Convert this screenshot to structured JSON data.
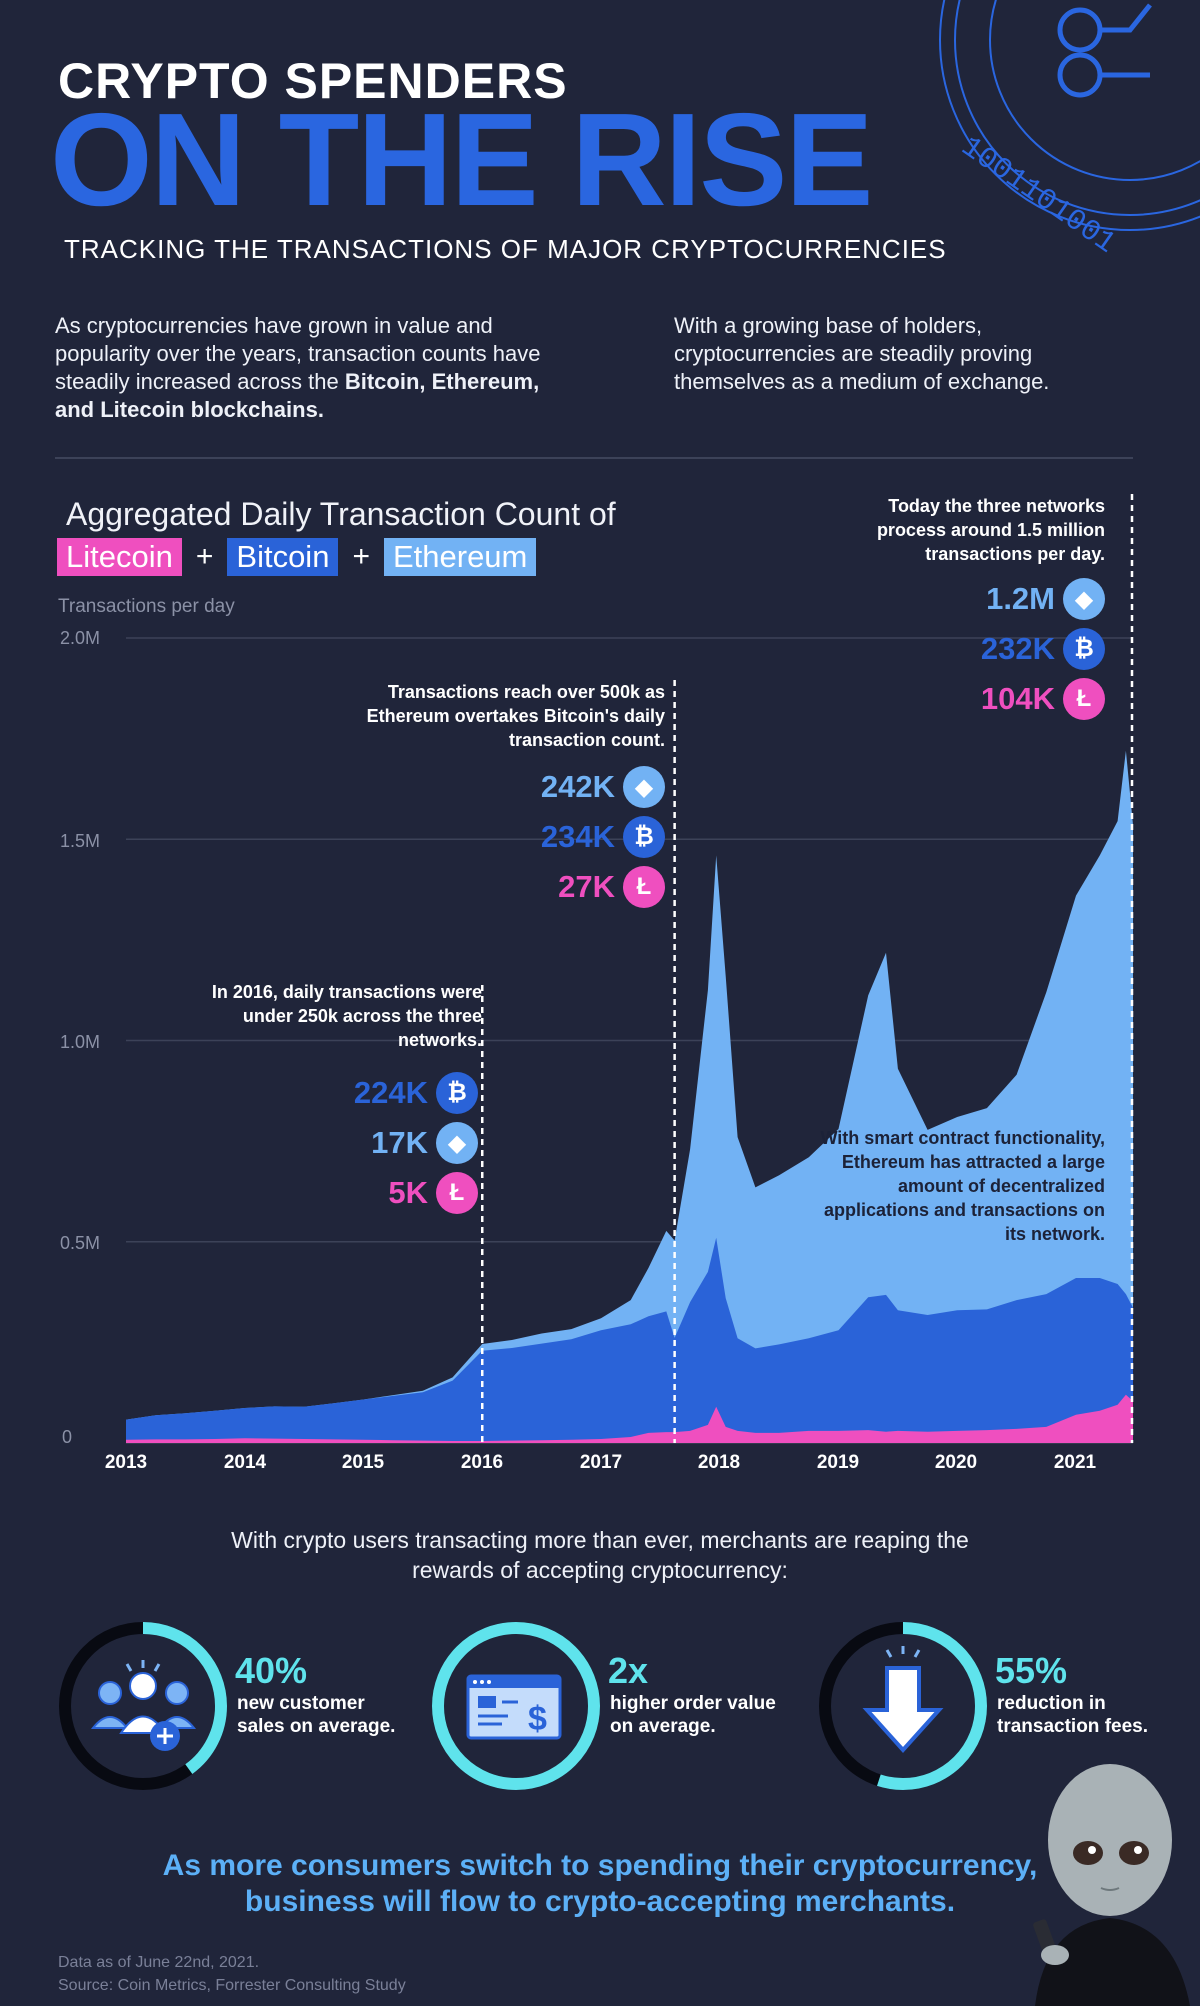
{
  "header": {
    "title_small": "CRYPTO SPENDERS",
    "title_big": "ON THE RISE",
    "subtitle": "TRACKING THE TRANSACTIONS OF MAJOR CRYPTOCURRENCIES",
    "coin_bits": "1001101001"
  },
  "intro": {
    "left_text": "As cryptocurrencies have grown in value and popularity over the years, transaction counts have steadily increased across the ",
    "left_bold": "Bitcoin, Ethereum, and Litecoin blockchains.",
    "right_text": "With a growing base of holders, cryptocurrencies are steadily proving themselves as a medium of exchange."
  },
  "colors": {
    "background": "#20253a",
    "title_blue": "#2a66e0",
    "litecoin": "#ef4fbf",
    "bitcoin": "#2a63d8",
    "ethereum": "#72b2f4",
    "accent_cyan": "#5fe3ec",
    "closing_text": "#5cb0f7"
  },
  "chart_data": {
    "type": "area",
    "stacked": true,
    "title": "Aggregated Daily Transaction Count of",
    "legend": [
      "Litecoin",
      "Bitcoin",
      "Ethereum"
    ],
    "legend_separator": "+",
    "ylabel": "Transactions per day",
    "y_tick_labels": [
      "2.0M",
      "1.5M",
      "1.0M",
      "0.5M",
      "0"
    ],
    "y_ticks": [
      2000000,
      1500000,
      1000000,
      500000,
      0
    ],
    "ylim": [
      0,
      2000000
    ],
    "x_tick_labels": [
      "2013",
      "2014",
      "2015",
      "2016",
      "2017",
      "2018",
      "2019",
      "2020",
      "2021"
    ],
    "xlim": [
      2013.0,
      2021.48
    ],
    "grid": true,
    "x": [
      2013.0,
      2013.25,
      2013.5,
      2013.75,
      2014.0,
      2014.25,
      2014.5,
      2014.75,
      2015.0,
      2015.25,
      2015.5,
      2015.75,
      2016.0,
      2016.25,
      2016.5,
      2016.75,
      2017.0,
      2017.25,
      2017.4,
      2017.55,
      2017.62,
      2017.75,
      2017.9,
      2017.97,
      2018.05,
      2018.15,
      2018.3,
      2018.5,
      2018.75,
      2019.0,
      2019.25,
      2019.4,
      2019.5,
      2019.75,
      2020.0,
      2020.25,
      2020.5,
      2020.75,
      2021.0,
      2021.2,
      2021.35,
      2021.42,
      2021.48
    ],
    "series": [
      {
        "name": "Litecoin",
        "values": [
          8000,
          9000,
          9000,
          10000,
          12000,
          11000,
          10000,
          9000,
          8000,
          7000,
          6000,
          5000,
          5000,
          6000,
          7000,
          8000,
          10000,
          15000,
          25000,
          27000,
          27000,
          30000,
          45000,
          90000,
          40000,
          30000,
          25000,
          25000,
          30000,
          30000,
          32000,
          28000,
          30000,
          28000,
          30000,
          32000,
          35000,
          40000,
          70000,
          80000,
          95000,
          120000,
          104000
        ]
      },
      {
        "name": "Bitcoin",
        "values": [
          50000,
          60000,
          65000,
          70000,
          75000,
          80000,
          80000,
          90000,
          100000,
          110000,
          120000,
          150000,
          224000,
          230000,
          240000,
          250000,
          270000,
          280000,
          290000,
          300000,
          234000,
          320000,
          380000,
          420000,
          320000,
          230000,
          210000,
          220000,
          230000,
          250000,
          330000,
          340000,
          300000,
          290000,
          300000,
          300000,
          320000,
          330000,
          340000,
          330000,
          300000,
          250000,
          232000
        ]
      },
      {
        "name": "Ethereum",
        "values": [
          0,
          0,
          0,
          0,
          0,
          0,
          0,
          0,
          0,
          2000,
          4000,
          8000,
          17000,
          20000,
          25000,
          25000,
          30000,
          60000,
          120000,
          200000,
          242000,
          380000,
          700000,
          950000,
          800000,
          500000,
          400000,
          420000,
          450000,
          500000,
          750000,
          850000,
          600000,
          460000,
          480000,
          500000,
          560000,
          750000,
          950000,
          1050000,
          1150000,
          1350000,
          1200000
        ]
      }
    ],
    "annotations": [
      {
        "x": 2016.0,
        "text": "In 2016, daily transactions were under 250k across the three networks.",
        "stats": [
          {
            "value": "224K",
            "coin": "Bitcoin"
          },
          {
            "value": "17K",
            "coin": "Ethereum"
          },
          {
            "value": "5K",
            "coin": "Litecoin"
          }
        ]
      },
      {
        "x": 2017.62,
        "text": "Transactions reach over 500k as Ethereum overtakes Bitcoin's daily transaction count.",
        "stats": [
          {
            "value": "242K",
            "coin": "Ethereum"
          },
          {
            "value": "234K",
            "coin": "Bitcoin"
          },
          {
            "value": "27K",
            "coin": "Litecoin"
          }
        ]
      },
      {
        "x": 2021.48,
        "text": "Today the three networks process around 1.5 million transactions per day.",
        "stats": [
          {
            "value": "1.2M",
            "coin": "Ethereum"
          },
          {
            "value": "232K",
            "coin": "Bitcoin"
          },
          {
            "value": "104K",
            "coin": "Litecoin"
          }
        ]
      }
    ],
    "note": "With smart contract functionality, Ethereum has attracted a large amount of decentralized applications and transactions on its network."
  },
  "merchants": {
    "lead": "With crypto users transacting more than ever, merchants are reaping the rewards of accepting cryptocurrency:",
    "metrics": [
      {
        "value": "40%",
        "fraction": 0.4,
        "desc_1": "new customer",
        "desc_2": "sales on average.",
        "icon": "users-plus-icon"
      },
      {
        "value": "2x",
        "fraction": 1.0,
        "desc_1": "higher order value",
        "desc_2": "on average.",
        "icon": "invoice-dollar-icon"
      },
      {
        "value": "55%",
        "fraction": 0.55,
        "desc_1": "reduction in",
        "desc_2": "transaction fees.",
        "icon": "down-arrow-icon"
      }
    ]
  },
  "closing": {
    "line_1": "As more consumers switch to spending their cryptocurrency,",
    "line_2": "business will flow to crypto-accepting merchants."
  },
  "footer": {
    "date_note": "Data as of June 22nd, 2021.",
    "source": "Source: Coin Metrics, Forrester Consulting Study"
  }
}
